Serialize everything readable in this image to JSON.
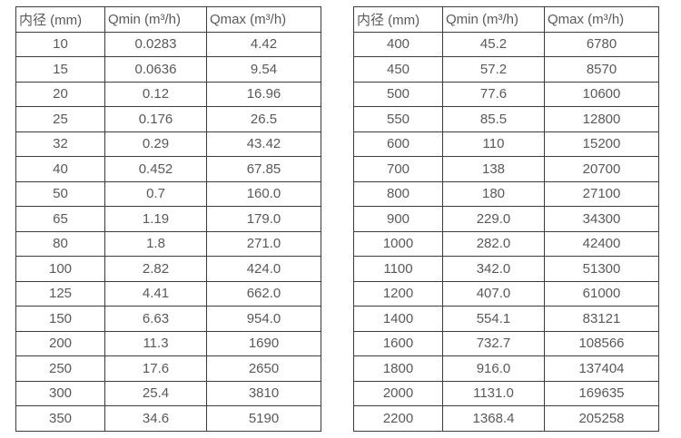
{
  "page": {
    "background_color": "#ffffff",
    "text_color": "#595959",
    "border_color": "#3c3c3c"
  },
  "tables": [
    {
      "name": "small-diameter-flow-table",
      "headers": [
        "内径 (mm)",
        "Qmin (m³/h)",
        "Qmax (m³/h)"
      ],
      "rows": [
        [
          "10",
          "0.0283",
          "4.42"
        ],
        [
          "15",
          "0.0636",
          "9.54"
        ],
        [
          "20",
          "0.12",
          "16.96"
        ],
        [
          "25",
          "0.176",
          "26.5"
        ],
        [
          "32",
          "0.29",
          "43.42"
        ],
        [
          "40",
          "0.452",
          "67.85"
        ],
        [
          "50",
          "0.7",
          "160.0"
        ],
        [
          "65",
          "1.19",
          "179.0"
        ],
        [
          "80",
          "1.8",
          "271.0"
        ],
        [
          "100",
          "2.82",
          "424.0"
        ],
        [
          "125",
          "4.41",
          "662.0"
        ],
        [
          "150",
          "6.63",
          "954.0"
        ],
        [
          "200",
          "11.3",
          "1690"
        ],
        [
          "250",
          "17.6",
          "2650"
        ],
        [
          "300",
          "25.4",
          "3810"
        ],
        [
          "350",
          "34.6",
          "5190"
        ]
      ]
    },
    {
      "name": "large-diameter-flow-table",
      "headers": [
        "内径 (mm)",
        "Qmin (m³/h)",
        "Qmax (m³/h)"
      ],
      "rows": [
        [
          "400",
          "45.2",
          "6780"
        ],
        [
          "450",
          "57.2",
          "8570"
        ],
        [
          "500",
          "77.6",
          "10600"
        ],
        [
          "550",
          "85.5",
          "12800"
        ],
        [
          "600",
          "110",
          "15200"
        ],
        [
          "700",
          "138",
          "20700"
        ],
        [
          "800",
          "180",
          "27100"
        ],
        [
          "900",
          "229.0",
          "34300"
        ],
        [
          "1000",
          "282.0",
          "42400"
        ],
        [
          "1100",
          "342.0",
          "51300"
        ],
        [
          "1200",
          "407.0",
          "61000"
        ],
        [
          "1400",
          "554.1",
          "83121"
        ],
        [
          "1600",
          "732.7",
          "108566"
        ],
        [
          "1800",
          "916.0",
          "137404"
        ],
        [
          "2000",
          "1131.0",
          "169635"
        ],
        [
          "2200",
          "1368.4",
          "205258"
        ]
      ]
    }
  ]
}
